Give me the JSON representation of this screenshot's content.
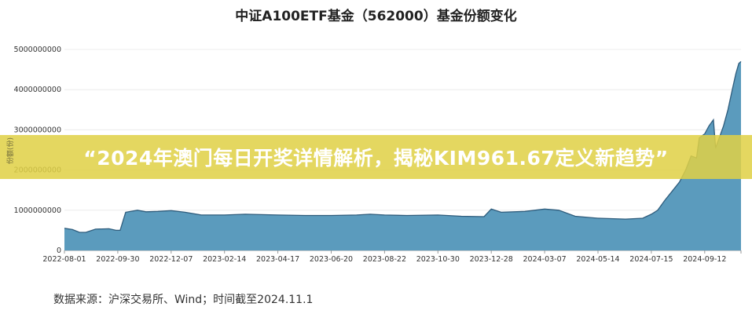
{
  "chart_data": {
    "type": "area",
    "title": "中证A100ETF基金（562000）基金份额变化",
    "ylabel": "份额(份)",
    "xlabel": "",
    "ylim": [
      0,
      5000000000
    ],
    "y_ticks": [
      "0",
      "1000000000",
      "2000000000",
      "3000000000",
      "4000000000",
      "5000000000"
    ],
    "x_ticks": [
      "2022-08-01",
      "2022-09-30",
      "2022-12-07",
      "2023-02-14",
      "2023-04-17",
      "2023-06-20",
      "2023-08-22",
      "2023-10-30",
      "2023-12-28",
      "2024-03-07",
      "2024-05-14",
      "2024-07-15",
      "2024-09-12"
    ],
    "grid": true,
    "legend": "none",
    "colors": {
      "fill": "#5b9bbd",
      "line": "#2e5c7c"
    },
    "series": [
      {
        "x": [
          "2022-08-01",
          "2022-08-10",
          "2022-08-18",
          "2022-08-25",
          "2022-09-05",
          "2022-09-20",
          "2022-09-28",
          "2022-10-03",
          "2022-10-10",
          "2022-10-25",
          "2022-11-05",
          "2022-11-20",
          "2022-12-07",
          "2022-12-25",
          "2023-01-15",
          "2023-02-14",
          "2023-03-10",
          "2023-04-17",
          "2023-05-20",
          "2023-06-20",
          "2023-07-20",
          "2023-08-05",
          "2023-08-22",
          "2023-09-20",
          "2023-10-30",
          "2023-11-25",
          "2023-12-20",
          "2023-12-28",
          "2024-01-10",
          "2024-02-10",
          "2024-03-07",
          "2024-03-25",
          "2024-04-15",
          "2024-05-14",
          "2024-06-15",
          "2024-07-05",
          "2024-07-15",
          "2024-07-22",
          "2024-07-30",
          "2024-08-08",
          "2024-08-15",
          "2024-08-22",
          "2024-08-28",
          "2024-09-03",
          "2024-09-06",
          "2024-09-12",
          "2024-09-18",
          "2024-09-24",
          "2024-09-27",
          "2024-10-08",
          "2024-10-14",
          "2024-10-20",
          "2024-10-25",
          "2024-10-29",
          "2024-11-01"
        ],
        "values": [
          550000000,
          520000000,
          450000000,
          450000000,
          530000000,
          540000000,
          500000000,
          500000000,
          950000000,
          1000000000,
          960000000,
          970000000,
          990000000,
          950000000,
          880000000,
          880000000,
          900000000,
          880000000,
          870000000,
          870000000,
          880000000,
          900000000,
          880000000,
          870000000,
          880000000,
          850000000,
          840000000,
          1030000000,
          950000000,
          970000000,
          1030000000,
          1000000000,
          850000000,
          800000000,
          780000000,
          800000000,
          900000000,
          1000000000,
          1250000000,
          1500000000,
          1700000000,
          2000000000,
          2350000000,
          2300000000,
          2800000000,
          2900000000,
          3100000000,
          3250000000,
          2550000000,
          3100000000,
          3500000000,
          4000000000,
          4400000000,
          4650000000,
          4700000000
        ]
      }
    ]
  },
  "banner": {
    "text": "“2024年澳门每日开奖详情解析，揭秘KIM961.67定义新趋势”"
  },
  "source": {
    "text": "数据来源：沪深交易所、Wind；时间截至2024.11.1"
  }
}
